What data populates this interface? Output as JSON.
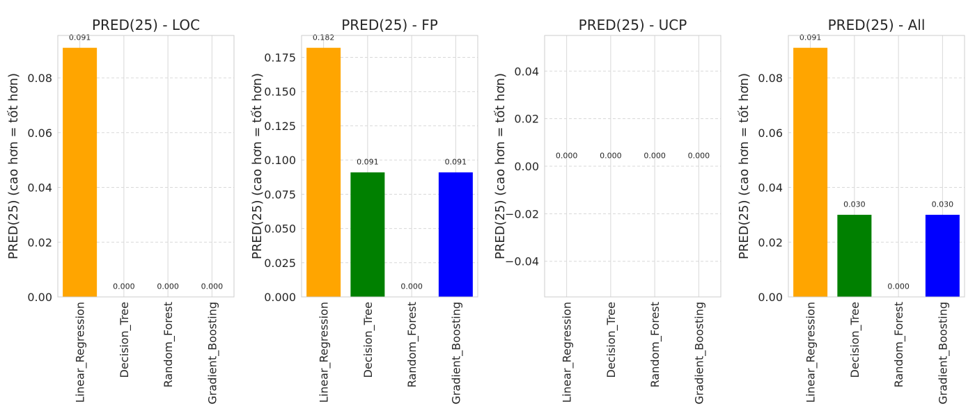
{
  "chart_data": [
    {
      "type": "bar",
      "title": "PRED(25) - LOC",
      "ylabel": "PRED(25) (cao hơn = tốt hơn)",
      "categories": [
        "Linear_Regression",
        "Decision_Tree",
        "Random_Forest",
        "Gradient_Boosting"
      ],
      "values": [
        0.091,
        0.0,
        0.0,
        0.0
      ],
      "data_labels": [
        "0.091",
        "0.000",
        "0.000",
        "0.000"
      ],
      "ylim": [
        0,
        0.0955
      ],
      "yticks": [
        0,
        0.02,
        0.04,
        0.06,
        0.08
      ],
      "ytick_labels": [
        "0.00",
        "0.02",
        "0.04",
        "0.06",
        "0.08"
      ],
      "grid": true
    },
    {
      "type": "bar",
      "title": "PRED(25) - FP",
      "ylabel": "PRED(25) (cao hơn = tốt hơn)",
      "categories": [
        "Linear_Regression",
        "Decision_Tree",
        "Random_Forest",
        "Gradient_Boosting"
      ],
      "values": [
        0.182,
        0.091,
        0.0,
        0.091
      ],
      "data_labels": [
        "0.182",
        "0.091",
        "0.000",
        "0.091"
      ],
      "ylim": [
        0,
        0.191
      ],
      "yticks": [
        0,
        0.025,
        0.05,
        0.075,
        0.1,
        0.125,
        0.15,
        0.175
      ],
      "ytick_labels": [
        "0.000",
        "0.025",
        "0.050",
        "0.075",
        "0.100",
        "0.125",
        "0.150",
        "0.175"
      ],
      "grid": true
    },
    {
      "type": "bar",
      "title": "PRED(25) - UCP",
      "ylabel": "PRED(25) (cao hơn = tốt hơn)",
      "categories": [
        "Linear_Regression",
        "Decision_Tree",
        "Random_Forest",
        "Gradient_Boosting"
      ],
      "values": [
        0.0,
        0.0,
        0.0,
        0.0
      ],
      "data_labels": [
        "0.000",
        "0.000",
        "0.000",
        "0.000"
      ],
      "ylim": [
        -0.055,
        0.055
      ],
      "yticks": [
        -0.04,
        -0.02,
        0.0,
        0.02,
        0.04
      ],
      "ytick_labels": [
        "−0.04",
        "−0.02",
        "0.00",
        "0.02",
        "0.04"
      ],
      "grid": true
    },
    {
      "type": "bar",
      "title": "PRED(25) - All",
      "ylabel": "PRED(25) (cao hơn = tốt hơn)",
      "categories": [
        "Linear_Regression",
        "Decision_Tree",
        "Random_Forest",
        "Gradient_Boosting"
      ],
      "values": [
        0.091,
        0.03,
        0.0,
        0.03
      ],
      "data_labels": [
        "0.091",
        "0.030",
        "0.000",
        "0.030"
      ],
      "ylim": [
        0,
        0.0955
      ],
      "yticks": [
        0,
        0.02,
        0.04,
        0.06,
        0.08
      ],
      "ytick_labels": [
        "0.00",
        "0.02",
        "0.04",
        "0.06",
        "0.08"
      ],
      "grid": true
    }
  ],
  "colors": {
    "Linear_Regression": "#ffa500",
    "Decision_Tree": "#008000",
    "Random_Forest": "#ff0000",
    "Gradient_Boosting": "#0000ff"
  }
}
